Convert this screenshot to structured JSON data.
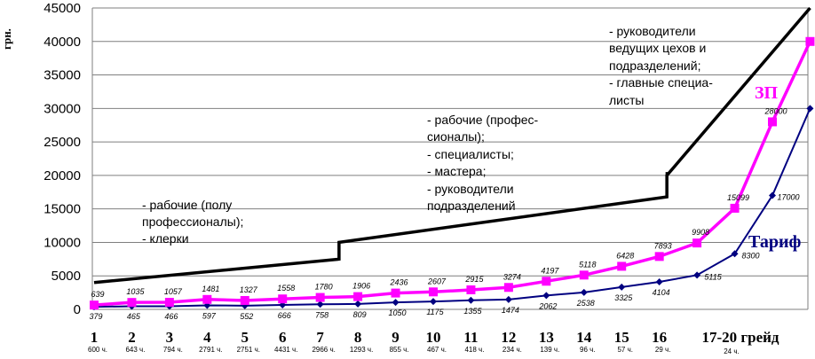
{
  "chart_data": {
    "type": "line",
    "ylabel": "грн.",
    "ylim": [
      0,
      45000
    ],
    "yticks": [
      0,
      5000,
      10000,
      15000,
      20000,
      25000,
      30000,
      35000,
      40000,
      45000
    ],
    "grades": [
      "1",
      "2",
      "3",
      "4",
      "5",
      "6",
      "7",
      "8",
      "9",
      "10",
      "11",
      "12",
      "13",
      "14",
      "15",
      "16",
      "17-20 грейд"
    ],
    "hours": [
      "600 ч.",
      "643 ч.",
      "794 ч.",
      "2791 ч.",
      "2751 ч.",
      "4431 ч.",
      "2966 ч.",
      "1293 ч.",
      "855 ч.",
      "467 ч.",
      "418 ч.",
      "234 ч.",
      "139 ч.",
      "96 ч.",
      "57 ч.",
      "29 ч.",
      "24 ч."
    ],
    "colors": {
      "zp": "#ff00ff",
      "tarif": "#000080",
      "band": "#000000"
    },
    "series": [
      {
        "name": "ЗП",
        "x": [
          0,
          1,
          2,
          3,
          4,
          5,
          6,
          7,
          8,
          9,
          10,
          11,
          12,
          13,
          14,
          15,
          16,
          17,
          18,
          19
        ],
        "values": [
          639,
          1035,
          1057,
          1481,
          1327,
          1558,
          1780,
          1906,
          2436,
          2607,
          2915,
          3274,
          4197,
          5118,
          6428,
          7893,
          9908,
          15099,
          28000,
          40000
        ],
        "labels": [
          "639",
          "1035",
          "1057",
          "1481",
          "1327",
          "1558",
          "1780",
          "1906",
          "2436",
          "2607",
          "2915",
          "3274",
          "4197",
          "5118",
          "6428",
          "7893",
          "9908",
          "15099",
          "28000",
          ""
        ]
      },
      {
        "name": "Тариф",
        "x": [
          0,
          1,
          2,
          3,
          4,
          5,
          6,
          7,
          8,
          9,
          10,
          11,
          12,
          13,
          14,
          15,
          16,
          17,
          18,
          19
        ],
        "values": [
          379,
          465,
          466,
          597,
          552,
          666,
          758,
          809,
          1050,
          1175,
          1355,
          1474,
          2062,
          2538,
          3325,
          4104,
          5115,
          8300,
          17000,
          30000
        ],
        "labels": [
          "379",
          "465",
          "466",
          "597",
          "552",
          "666",
          "758",
          "809",
          "1050",
          "1175",
          "1355",
          "1474",
          "2062",
          "2538",
          "3325",
          "4104",
          "5115",
          "8300",
          "17000",
          ""
        ]
      },
      {
        "name": "band",
        "x": [
          0,
          6.5,
          6.5,
          15.2,
          15.2,
          19
        ],
        "values": [
          4000,
          7500,
          10000,
          16800,
          20000,
          45000
        ],
        "steps": [
          [
            6.5,
            7500,
            10200
          ],
          [
            15.2,
            16800,
            20500
          ]
        ]
      }
    ],
    "annotations": [
      {
        "lines": [
          "- рабочие (полу",
          "профессионалы);",
          "- клерки"
        ]
      },
      {
        "lines": [
          "- рабочие (профес-",
          "сионалы);",
          "- специалисты;",
          "- мастера;",
          "- руководители",
          "подразделений"
        ]
      },
      {
        "lines": [
          "- руководители",
          "ведущих цехов и",
          "подразделений;",
          "- главные специа-",
          "листы"
        ]
      }
    ]
  }
}
